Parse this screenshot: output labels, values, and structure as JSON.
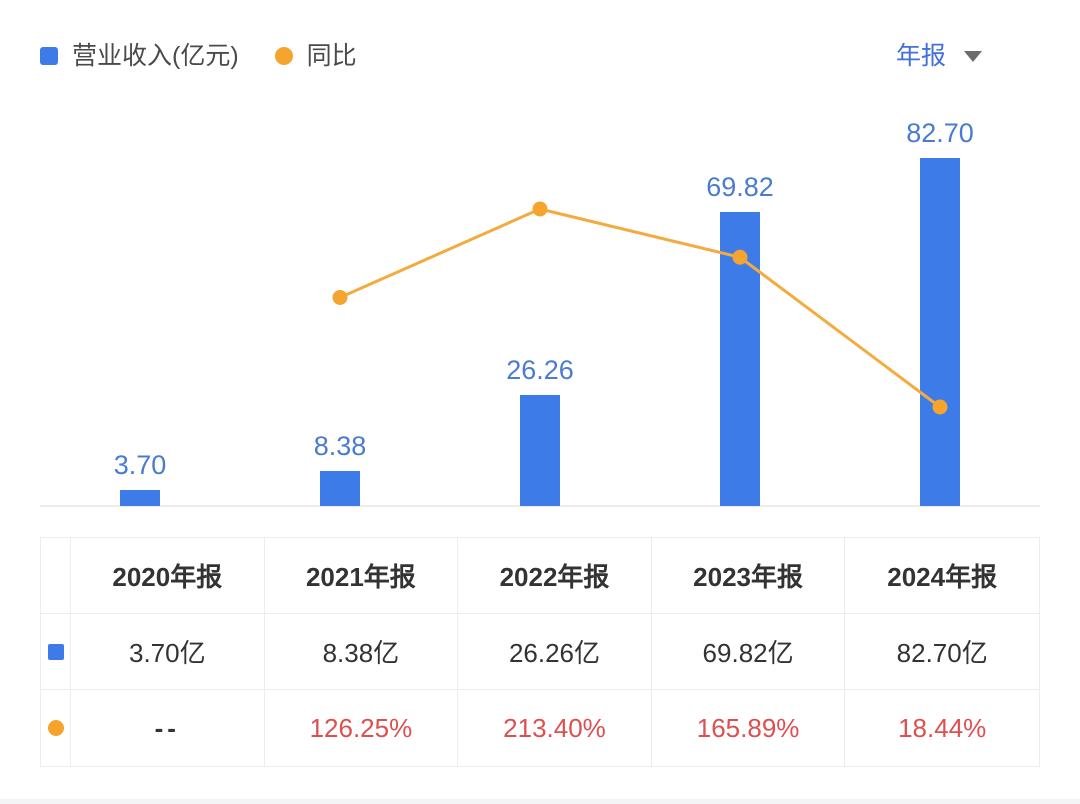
{
  "legend": {
    "items": [
      {
        "label": "营业收入(亿元)",
        "swatch": "square",
        "color": "#3d7ce8"
      },
      {
        "label": "同比",
        "swatch": "dot",
        "color": "#f5a42e"
      }
    ]
  },
  "period_selector": {
    "label": "年报"
  },
  "chart_data": {
    "type": "bar+line combo",
    "categories": [
      "2020年报",
      "2021年报",
      "2022年报",
      "2023年报",
      "2024年报"
    ],
    "series": [
      {
        "name": "营业收入(亿元)",
        "type": "bar",
        "unit": "亿元",
        "values": [
          3.7,
          8.38,
          26.26,
          69.82,
          82.7
        ],
        "labels": [
          "3.70",
          "8.38",
          "26.26",
          "69.82",
          "82.70"
        ],
        "color": "#3d7ce8",
        "label_color": "#4a7bd0"
      },
      {
        "name": "同比",
        "type": "line",
        "unit": "%",
        "values": [
          null,
          126.25,
          213.4,
          165.89,
          18.44
        ],
        "color": "#f5a42e",
        "line_color": "#f3ab3f"
      }
    ],
    "legend_position": "top-left",
    "grid": false,
    "value_labels_on": "bar",
    "x_axis_labels_shown": false,
    "y_axis_shown": false
  },
  "table": {
    "headers": [
      "2020年报",
      "2021年报",
      "2022年报",
      "2023年报",
      "2024年报"
    ],
    "rows": [
      {
        "series": "营业收入(亿元)",
        "icon": "blue-square-icon",
        "icon_shape": "square",
        "icon_color": "#3d7ce8",
        "values": [
          "3.70亿",
          "8.38亿",
          "26.26亿",
          "69.82亿",
          "82.70亿"
        ],
        "value_color": "#333333"
      },
      {
        "series": "同比",
        "icon": "orange-dot-icon",
        "icon_shape": "dot",
        "icon_color": "#f5a42e",
        "values": [
          "--",
          "126.25%",
          "213.40%",
          "165.89%",
          "18.44%"
        ],
        "value_color": "#de4f4f",
        "empty_value_color": "#333333"
      }
    ]
  },
  "colors": {
    "bar_blue": "#3d7ce8",
    "bar_label_blue": "#4a7bd0",
    "period_blue": "#4171d9",
    "line_orange": "#f3ab3f",
    "dot_orange": "#f5a42e",
    "negative_red": "#de4f4f",
    "text_dark": "#333333",
    "border_light": "#ededed"
  }
}
